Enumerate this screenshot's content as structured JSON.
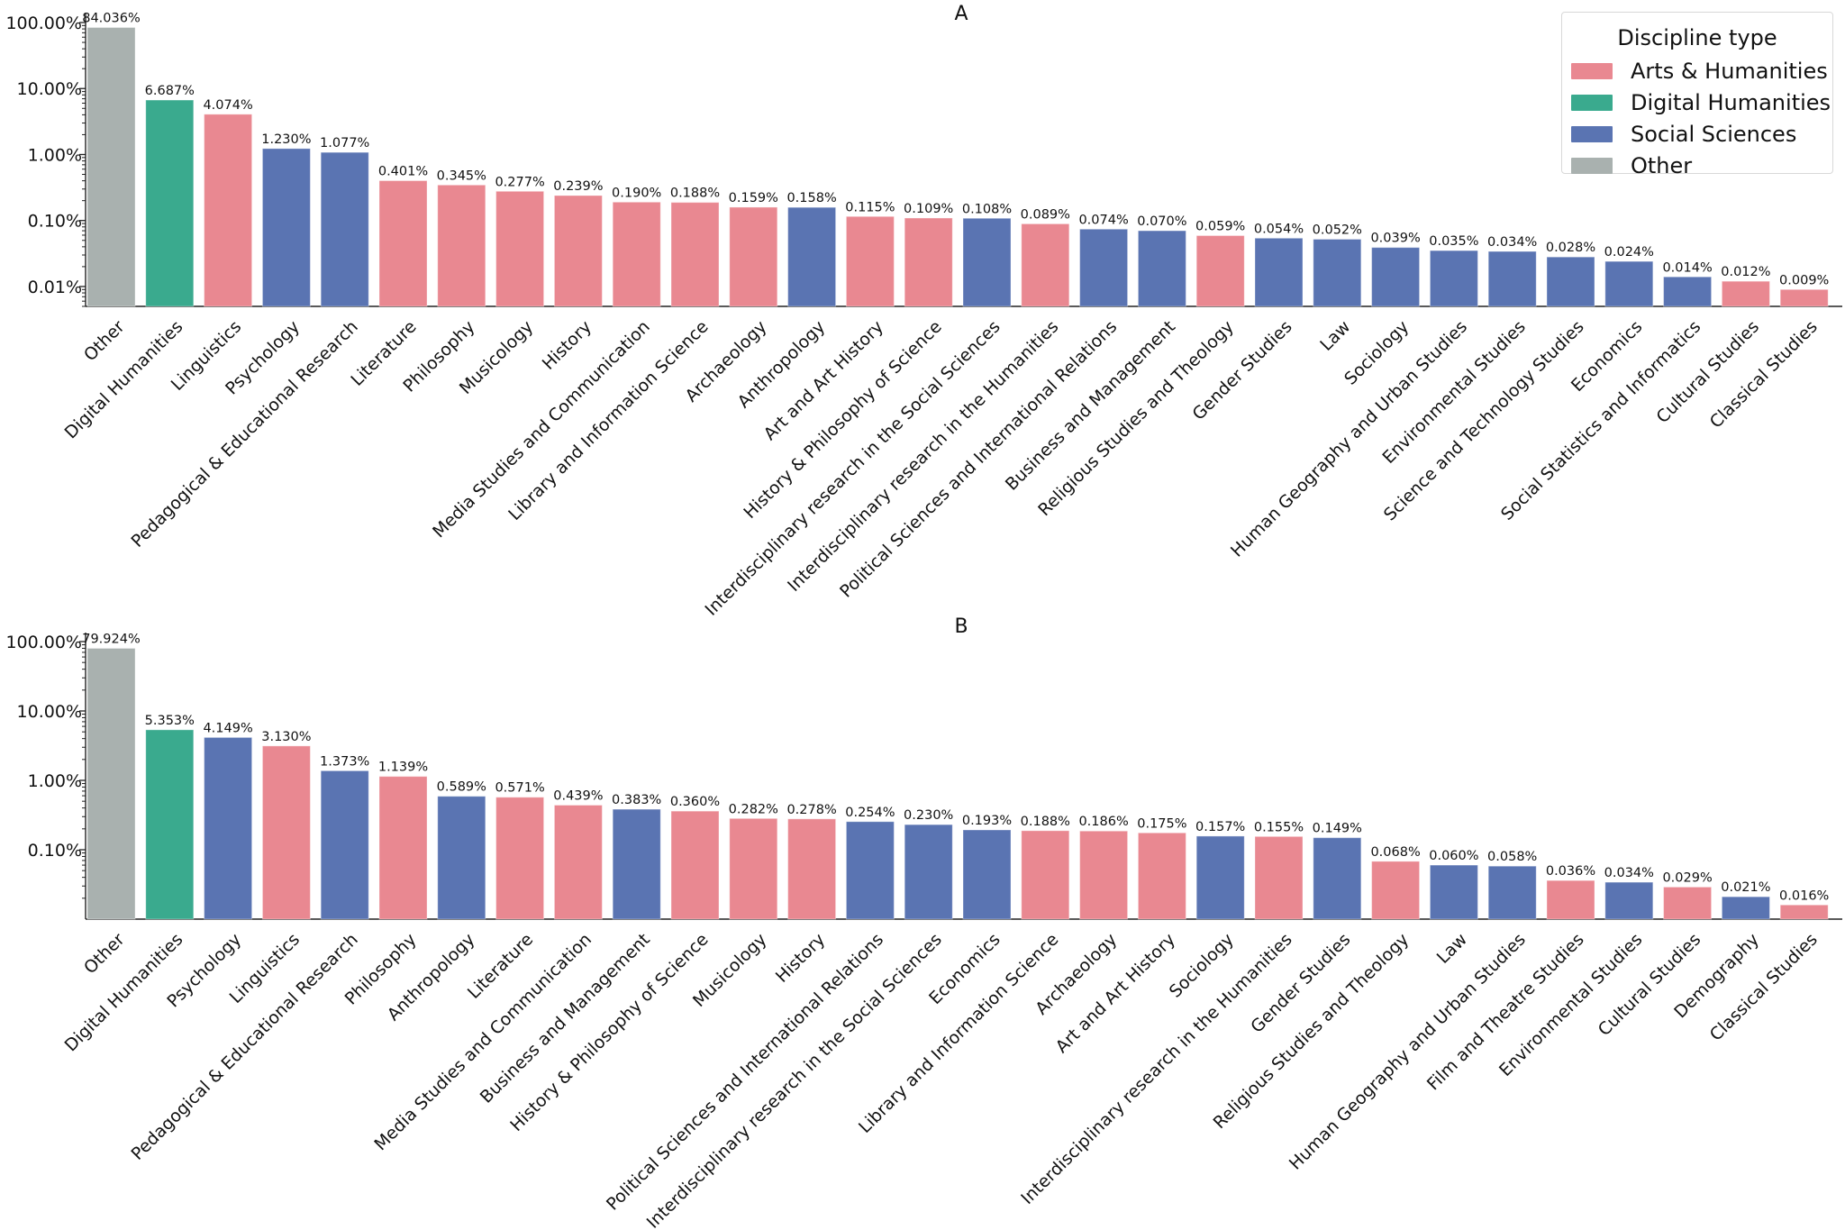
{
  "colors": {
    "Arts & Humanities": "#e98891",
    "Digital Humanities": "#3aaa8e",
    "Social Sciences": "#5a74b2",
    "Other": "#a9b1af"
  },
  "legend": {
    "title": "Discipline type",
    "items": [
      {
        "label": "Arts & Humanities",
        "color": "#e98891"
      },
      {
        "label": "Digital Humanities",
        "color": "#3aaa8e"
      },
      {
        "label": "Social Sciences",
        "color": "#5a74b2"
      },
      {
        "label": "Other",
        "color": "#a9b1af"
      }
    ]
  },
  "chart_data": [
    {
      "type": "bar",
      "title": "A",
      "yscale": "log",
      "ylim": [
        0.005,
        100
      ],
      "yticks": [
        0.01,
        0.1,
        1,
        10,
        100
      ],
      "ytick_labels": [
        "0.01%",
        "0.10%",
        "1.00%",
        "10.00%",
        "100.00%"
      ],
      "categories": [
        "Other",
        "Digital Humanities",
        "Linguistics",
        "Psychology",
        "Pedagogical & Educational Research",
        "Literature",
        "Philosophy",
        "Musicology",
        "History",
        "Media Studies and Communication",
        "Library and Information Science",
        "Archaeology",
        "Anthropology",
        "Art and Art History",
        "History & Philosophy of Science",
        "Interdisciplinary research in the Social Sciences",
        "Interdisciplinary research in the Humanities",
        "Political Sciences and International Relations",
        "Business and Management",
        "Religious Studies and Theology",
        "Gender Studies",
        "Law",
        "Sociology",
        "Human Geography and Urban Studies",
        "Environmental Studies",
        "Science and Technology Studies",
        "Economics",
        "Social Statistics and Informatics",
        "Cultural Studies",
        "Classical Studies"
      ],
      "values": [
        84.036,
        6.687,
        4.074,
        1.23,
        1.077,
        0.401,
        0.345,
        0.277,
        0.239,
        0.19,
        0.188,
        0.159,
        0.158,
        0.115,
        0.109,
        0.108,
        0.089,
        0.074,
        0.07,
        0.059,
        0.054,
        0.052,
        0.039,
        0.035,
        0.034,
        0.028,
        0.024,
        0.014,
        0.012,
        0.009
      ],
      "value_labels": [
        "84.036%",
        "6.687%",
        "4.074%",
        "1.230%",
        "1.077%",
        "0.401%",
        "0.345%",
        "0.277%",
        "0.239%",
        "0.190%",
        "0.188%",
        "0.159%",
        "0.158%",
        "0.115%",
        "0.109%",
        "0.108%",
        "0.089%",
        "0.074%",
        "0.070%",
        "0.059%",
        "0.054%",
        "0.052%",
        "0.039%",
        "0.035%",
        "0.034%",
        "0.028%",
        "0.024%",
        "0.014%",
        "0.012%",
        "0.009%"
      ],
      "groups": [
        "Other",
        "Digital Humanities",
        "Arts & Humanities",
        "Social Sciences",
        "Social Sciences",
        "Arts & Humanities",
        "Arts & Humanities",
        "Arts & Humanities",
        "Arts & Humanities",
        "Arts & Humanities",
        "Arts & Humanities",
        "Arts & Humanities",
        "Social Sciences",
        "Arts & Humanities",
        "Arts & Humanities",
        "Social Sciences",
        "Arts & Humanities",
        "Social Sciences",
        "Social Sciences",
        "Arts & Humanities",
        "Social Sciences",
        "Social Sciences",
        "Social Sciences",
        "Social Sciences",
        "Social Sciences",
        "Social Sciences",
        "Social Sciences",
        "Social Sciences",
        "Arts & Humanities",
        "Arts & Humanities"
      ],
      "legend_placement": "top-right",
      "grid": false
    },
    {
      "type": "bar",
      "title": "B",
      "yscale": "log",
      "ylim": [
        0.01,
        100
      ],
      "yticks": [
        0.1,
        1,
        10,
        100
      ],
      "ytick_labels": [
        "0.10%",
        "1.00%",
        "10.00%",
        "100.00%"
      ],
      "categories": [
        "Other",
        "Digital Humanities",
        "Psychology",
        "Linguistics",
        "Pedagogical & Educational Research",
        "Philosophy",
        "Anthropology",
        "Literature",
        "Media Studies and Communication",
        "Business and Management",
        "History & Philosophy of Science",
        "Musicology",
        "History",
        "Political Sciences and International Relations",
        "Interdisciplinary research in the Social Sciences",
        "Economics",
        "Library and Information Science",
        "Archaeology",
        "Art and Art History",
        "Sociology",
        "Interdisciplinary research in the Humanities",
        "Gender Studies",
        "Religious Studies and Theology",
        "Law",
        "Human Geography and Urban Studies",
        "Film and Theatre Studies",
        "Environmental Studies",
        "Cultural Studies",
        "Demography",
        "Classical Studies"
      ],
      "values": [
        79.924,
        5.353,
        4.149,
        3.13,
        1.373,
        1.139,
        0.589,
        0.571,
        0.439,
        0.383,
        0.36,
        0.282,
        0.278,
        0.254,
        0.23,
        0.193,
        0.188,
        0.186,
        0.175,
        0.157,
        0.155,
        0.149,
        0.068,
        0.06,
        0.058,
        0.036,
        0.034,
        0.029,
        0.021,
        0.016
      ],
      "value_labels": [
        "79.924%",
        "5.353%",
        "4.149%",
        "3.130%",
        "1.373%",
        "1.139%",
        "0.589%",
        "0.571%",
        "0.439%",
        "0.383%",
        "0.360%",
        "0.282%",
        "0.278%",
        "0.254%",
        "0.230%",
        "0.193%",
        "0.188%",
        "0.186%",
        "0.175%",
        "0.157%",
        "0.155%",
        "0.149%",
        "0.068%",
        "0.060%",
        "0.058%",
        "0.036%",
        "0.034%",
        "0.029%",
        "0.021%",
        "0.016%"
      ],
      "groups": [
        "Other",
        "Digital Humanities",
        "Social Sciences",
        "Arts & Humanities",
        "Social Sciences",
        "Arts & Humanities",
        "Social Sciences",
        "Arts & Humanities",
        "Arts & Humanities",
        "Social Sciences",
        "Arts & Humanities",
        "Arts & Humanities",
        "Arts & Humanities",
        "Social Sciences",
        "Social Sciences",
        "Social Sciences",
        "Arts & Humanities",
        "Arts & Humanities",
        "Arts & Humanities",
        "Social Sciences",
        "Arts & Humanities",
        "Social Sciences",
        "Arts & Humanities",
        "Social Sciences",
        "Social Sciences",
        "Arts & Humanities",
        "Social Sciences",
        "Arts & Humanities",
        "Social Sciences",
        "Arts & Humanities"
      ],
      "grid": false
    }
  ]
}
